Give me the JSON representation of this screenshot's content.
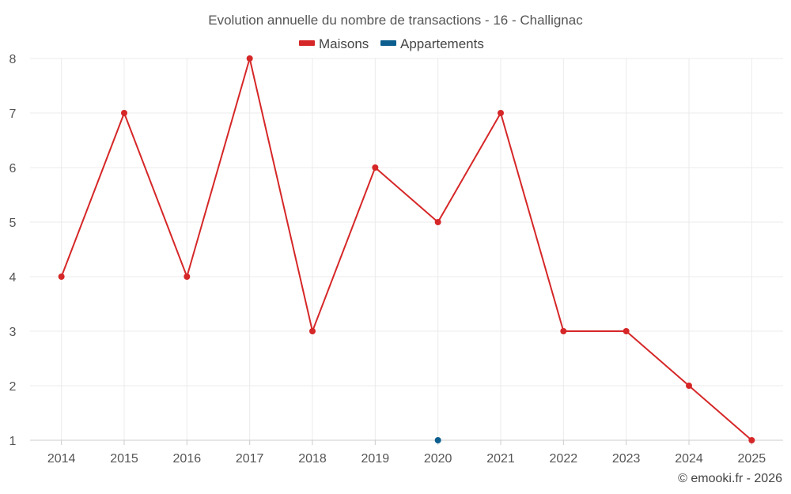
{
  "chart_data": {
    "type": "line",
    "title": "Evolution annuelle du nombre de transactions - 16 - Challignac",
    "xlabel": "",
    "ylabel": "",
    "categories": [
      "2014",
      "2015",
      "2016",
      "2017",
      "2018",
      "2019",
      "2020",
      "2021",
      "2022",
      "2023",
      "2024",
      "2025"
    ],
    "ylim": [
      1,
      8
    ],
    "yticks": [
      "1",
      "2",
      "3",
      "4",
      "5",
      "6",
      "7",
      "8"
    ],
    "grid": true,
    "legend_position": "top-center",
    "series": [
      {
        "name": "Maisons",
        "color": "#d62728",
        "values": [
          4,
          7,
          4,
          8,
          3,
          6,
          5,
          7,
          3,
          3,
          2,
          1
        ]
      },
      {
        "name": "Appartements",
        "color": "#0b5e8e",
        "values": [
          null,
          null,
          null,
          null,
          null,
          null,
          1,
          null,
          null,
          null,
          null,
          null
        ]
      }
    ],
    "credit": "© emooki.fr - 2026"
  }
}
